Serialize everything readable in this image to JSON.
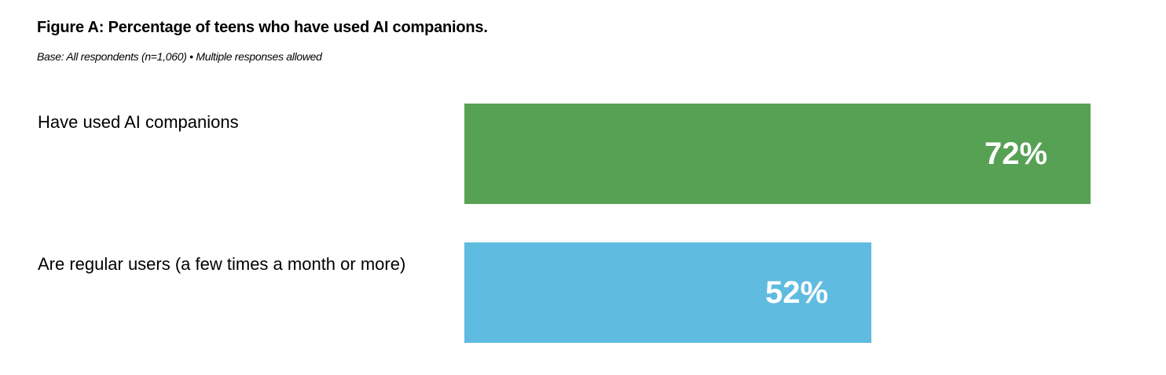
{
  "chart_data": {
    "type": "bar",
    "orientation": "horizontal",
    "title": "Figure A: Percentage of teens who have used AI companions.",
    "subtitle": "Base: All respondents (n=1,060) • Multiple responses allowed",
    "categories": [
      "Have used AI companions",
      "Are regular users (a few times a month or more)"
    ],
    "values": [
      72,
      52
    ],
    "data_labels": [
      "72%",
      "52%"
    ],
    "colors": [
      "#57a155",
      "#60bbe0"
    ],
    "xlim": [
      0,
      100
    ],
    "grid": false,
    "xlabel": "",
    "ylabel": ""
  }
}
